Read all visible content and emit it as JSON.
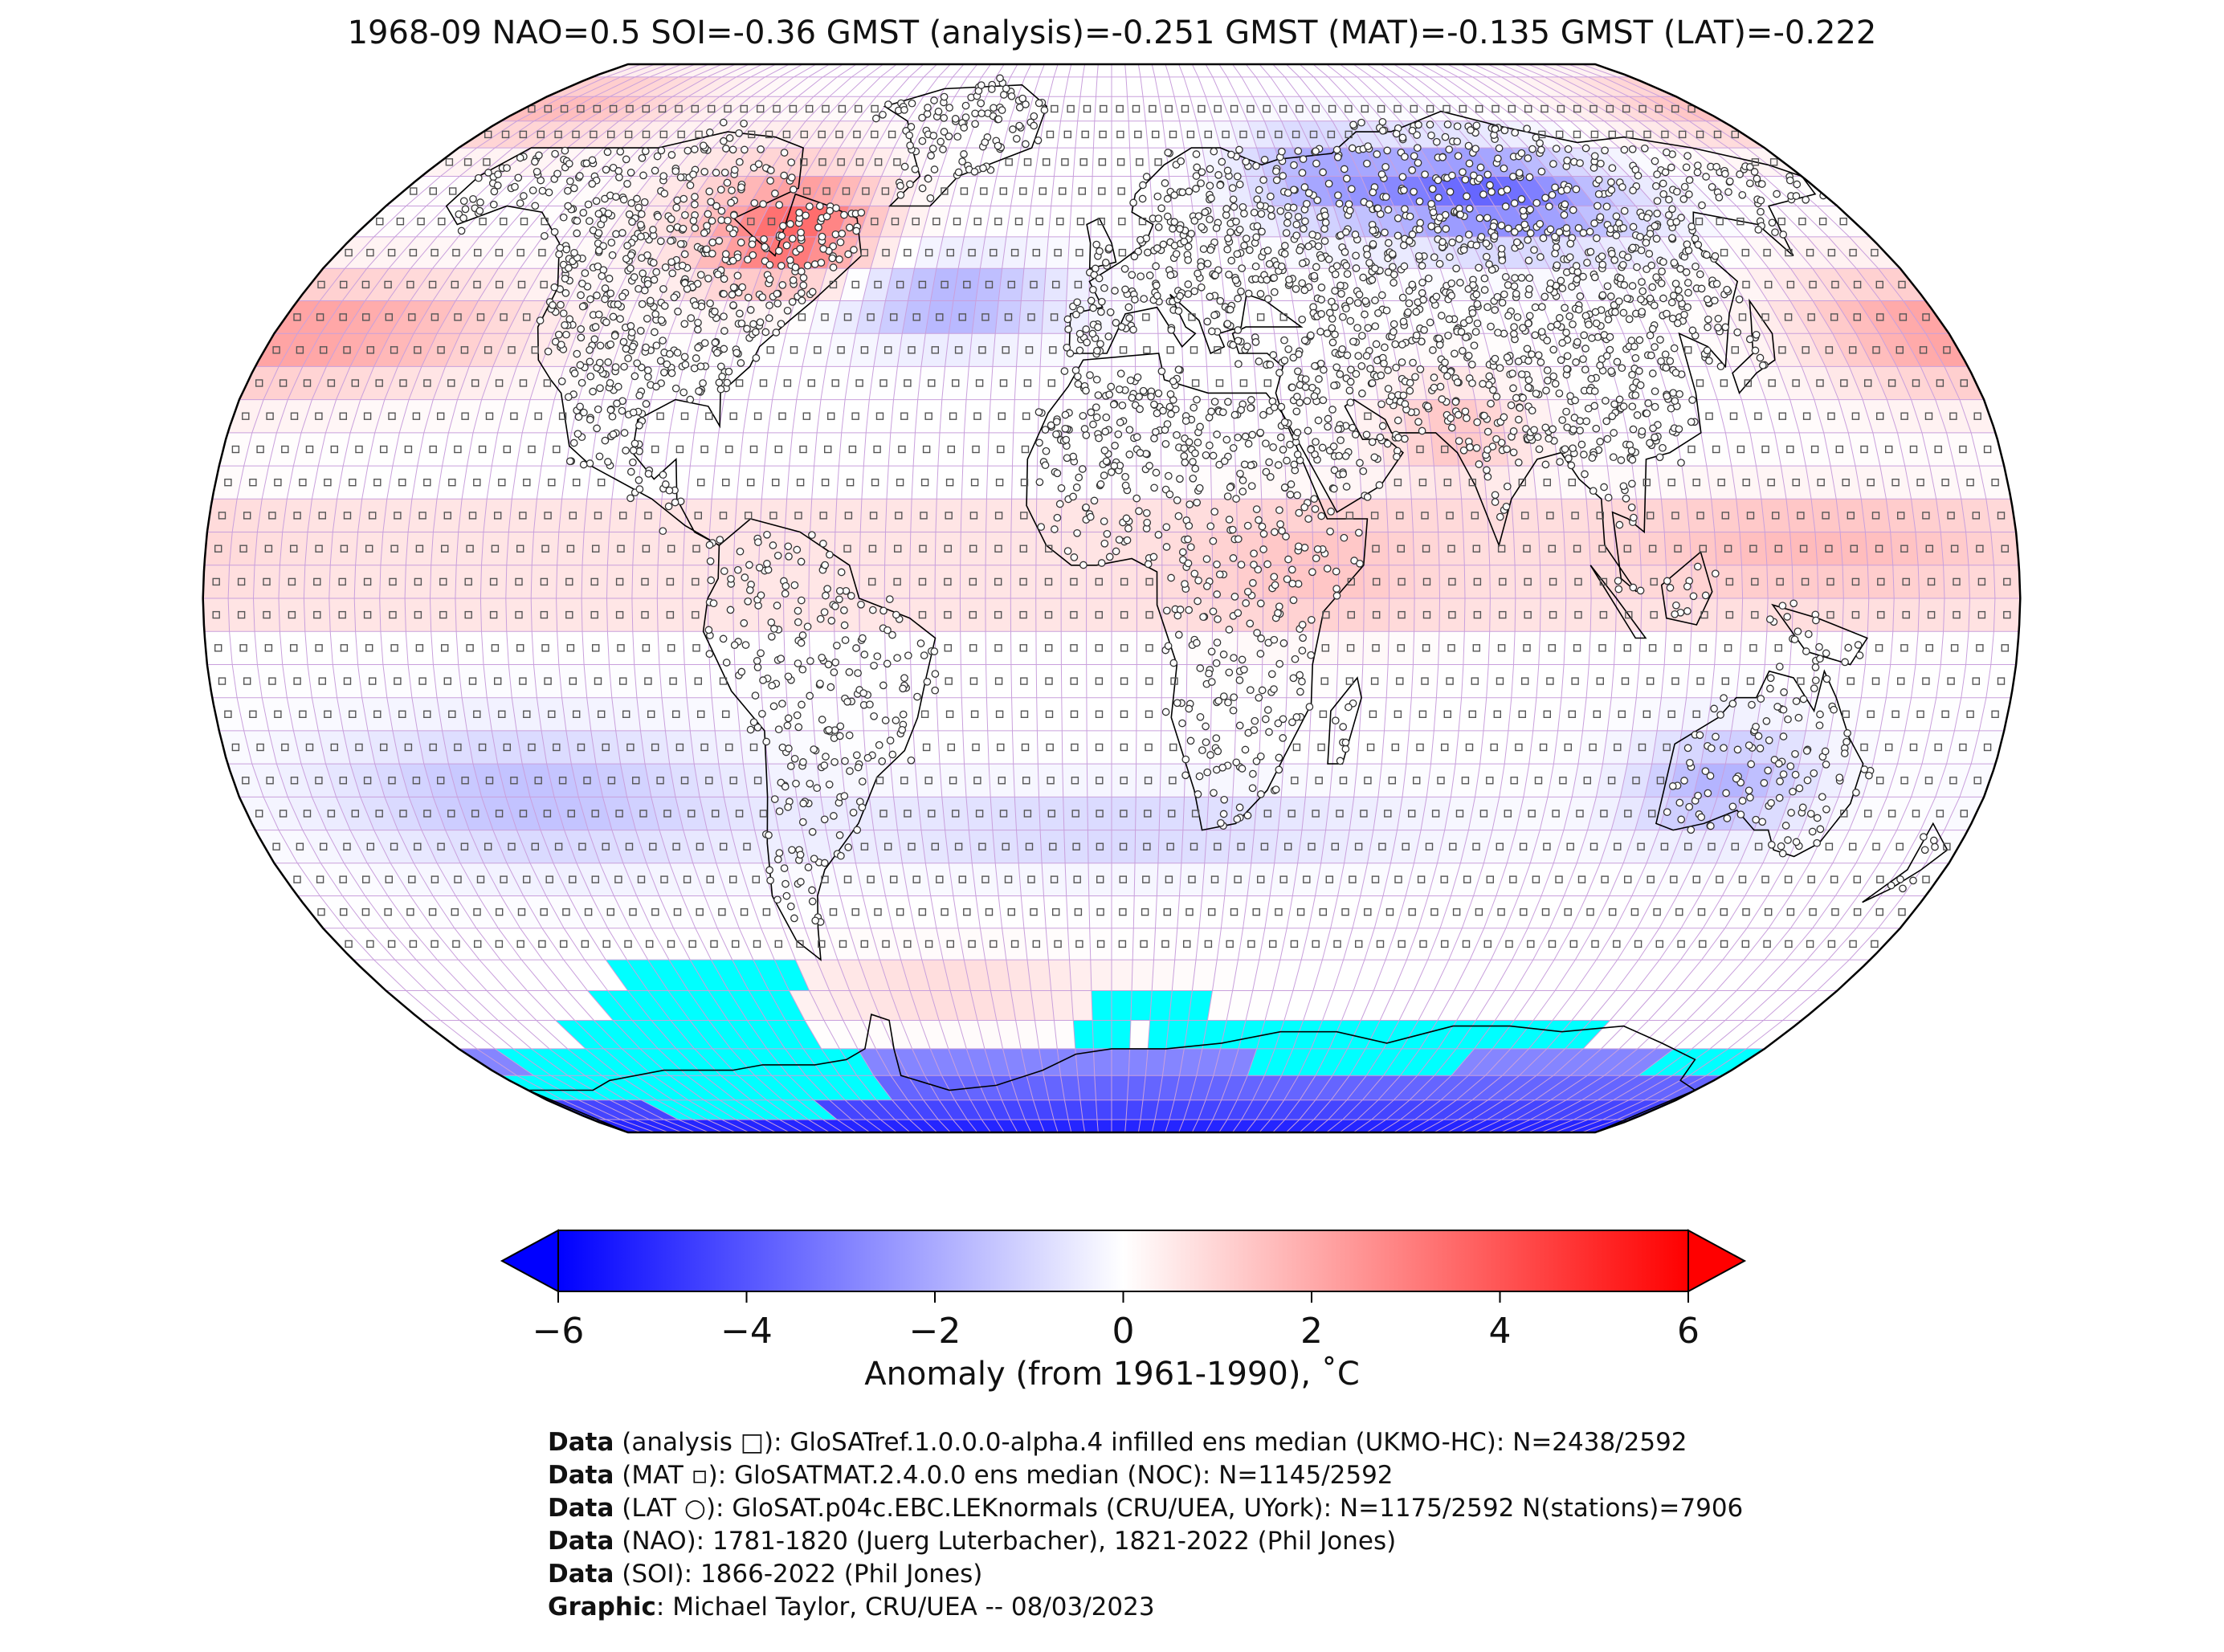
{
  "title": "1968-09 NAO=0.5 SOI=-0.36 GMST (analysis)=-0.251 GMST (MAT)=-0.135 GMST (LAT)=-0.222",
  "colorbar": {
    "label": "Anomaly (from 1961-1990), ˚C",
    "ticks": [
      "−6",
      "−4",
      "−2",
      "0",
      "2",
      "4",
      "6"
    ],
    "vmin": -6,
    "vmax": 6,
    "extend": "both",
    "colormap": [
      "#0000ff",
      "#ffffff",
      "#ff0000"
    ]
  },
  "map": {
    "projection": "Robinson",
    "no_data_color": "#00ffff",
    "gridbox_line_color": "#c9a0dc",
    "coastline_color": "#000000"
  },
  "credits": [
    {
      "bold": "Data",
      "text": " (analysis □): GloSATref.1.0.0.0-alpha.4 infilled ens median (UKMO-HC): N=2438/2592"
    },
    {
      "bold": "Data",
      "text": " (MAT ▫): GloSATMAT.2.4.0.0 ens median (NOC): N=1145/2592"
    },
    {
      "bold": "Data",
      "text": " (LAT ○): GloSAT.p04c.EBC.LEKnormals (CRU/UEA, UYork): N=1175/2592 N(stations)=7906"
    },
    {
      "bold": "Data",
      "text": " (NAO): 1781-1820 (Juerg Luterbacher), 1821-2022 (Phil Jones)"
    },
    {
      "bold": "Data",
      "text": " (SOI): 1866-2022 (Phil Jones)"
    },
    {
      "bold": "Graphic",
      "text": ": Michael Taylor, CRU/UEA -- 08/03/2023"
    }
  ]
}
